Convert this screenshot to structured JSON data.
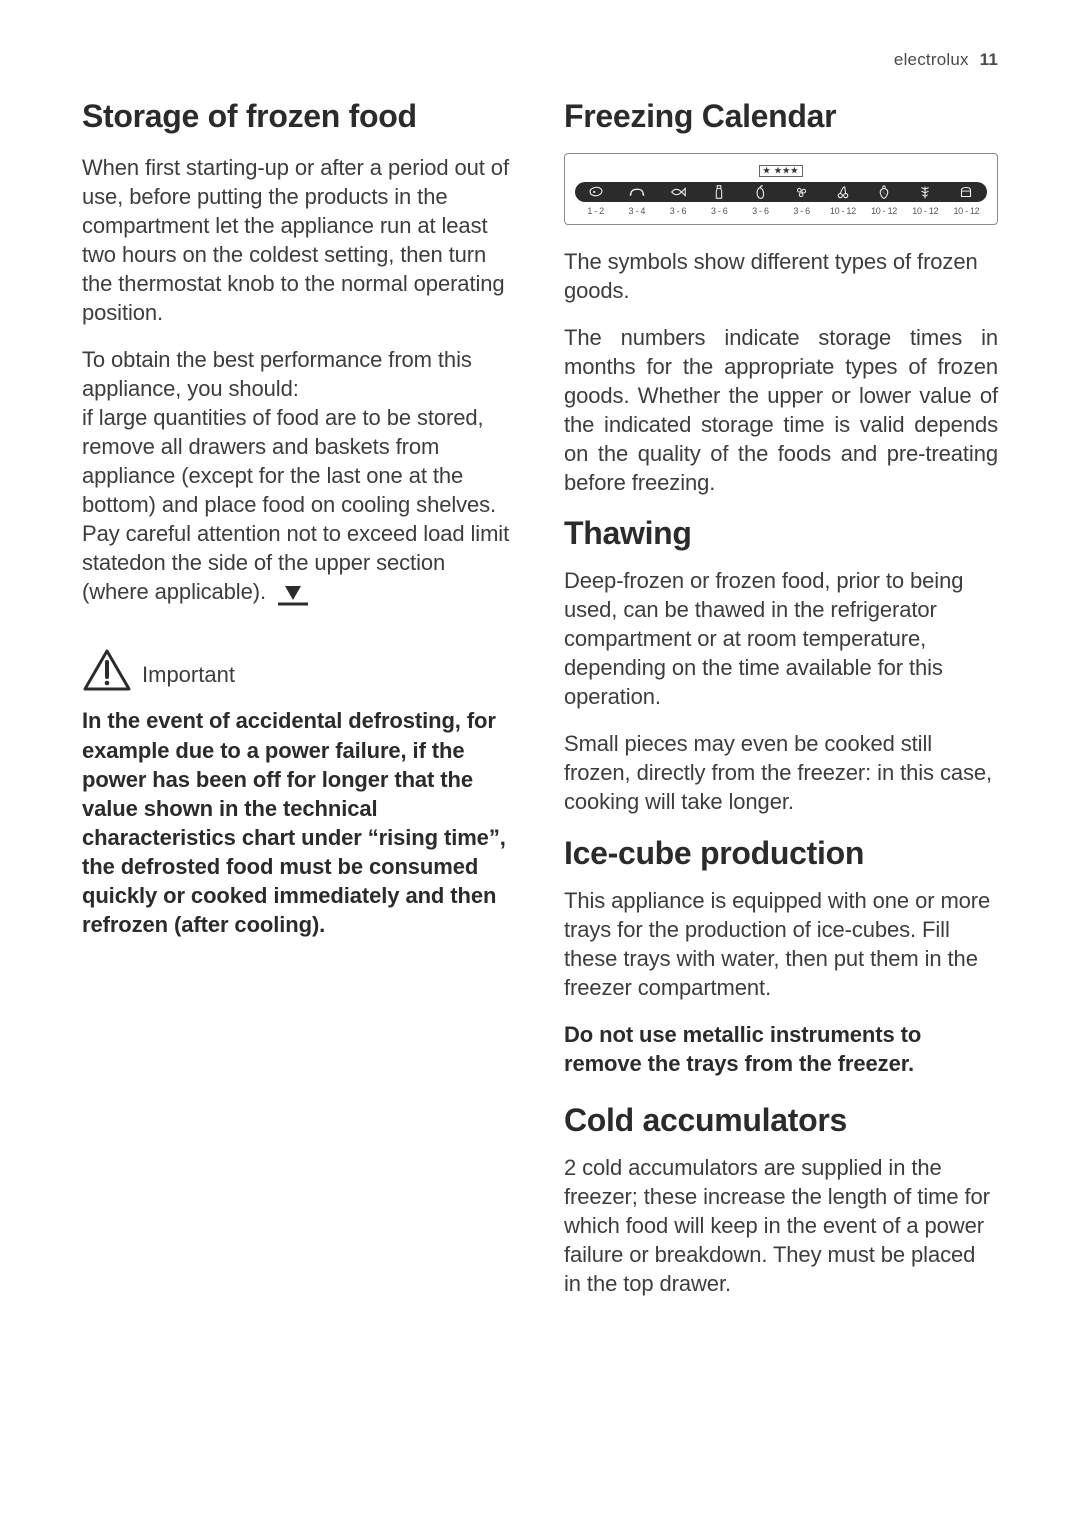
{
  "header": {
    "brand": "electrolux",
    "page_number": "11"
  },
  "left": {
    "h_storage": "Storage of frozen food",
    "p1": "When first starting-up or after a period out of use, before putting the products in the compartment let the appliance run at least two hours on the coldest setting, then turn the thermostat knob to the normal operating position.",
    "p2a": "To obtain the best performance from this appliance, you should:",
    "p2b": "if large quantities of food are to be stored, remove all drawers and baskets from appliance (except for the last one at the bottom) and place food on cooling shelves.",
    "p2c": "Pay careful attention not to exceed load limit statedon the side of the upper section (where applicable).",
    "important_label": "Important",
    "important_body": "In the event of accidental defrosting, for example due to a power failure, if the power has been off for longer that the value shown in the technical characteristics chart under “rising time”, the defrosted food must be consumed quickly or cooked immediately and then refrozen (after cooling)."
  },
  "right": {
    "h_calendar": "Freezing Calendar",
    "calendar": {
      "icons": [
        "meat",
        "sausage",
        "fish",
        "bottle",
        "pepper",
        "peas",
        "cherry",
        "strawberry",
        "herb",
        "bread"
      ],
      "ranges": [
        "1 - 2",
        "3 - 4",
        "3 - 6",
        "3 - 6",
        "3 - 6",
        "3 - 6",
        "10 - 12",
        "10 - 12",
        "10 - 12",
        "10 - 12"
      ],
      "strip_bg": "#2b2b2b",
      "icon_color": "#f2f2f2",
      "number_color": "#555555"
    },
    "cal_p1": "The symbols show different types of frozen goods.",
    "cal_p2": "The numbers indicate storage times in months for the appropriate types of frozen goods. Whether the upper or lower value of the indicated storage time is valid depends on the quality of the foods and pre-treating before freezing.",
    "h_thaw": "Thawing",
    "thaw_p1": "Deep-frozen or frozen food, prior to being used, can be thawed in the refrigerator compartment or at room temperature, depending on the time available for this operation.",
    "thaw_p2": "Small pieces may even be cooked still frozen, directly from the freezer: in this case, cooking will take longer.",
    "h_ice": "Ice-cube production",
    "ice_p1": "This appliance is equipped with one or more trays for the production of ice-cubes. Fill these trays with water, then put them in the freezer compartment.",
    "ice_bold": "Do not use metallic instruments to remove the trays from the freezer.",
    "h_cold": "Cold accumulators",
    "cold_p1": "2 cold accumulators are supplied in the freezer; these increase the length of time for which food will keep in the event of a power failure or breakdown. They must be placed in the top drawer."
  }
}
